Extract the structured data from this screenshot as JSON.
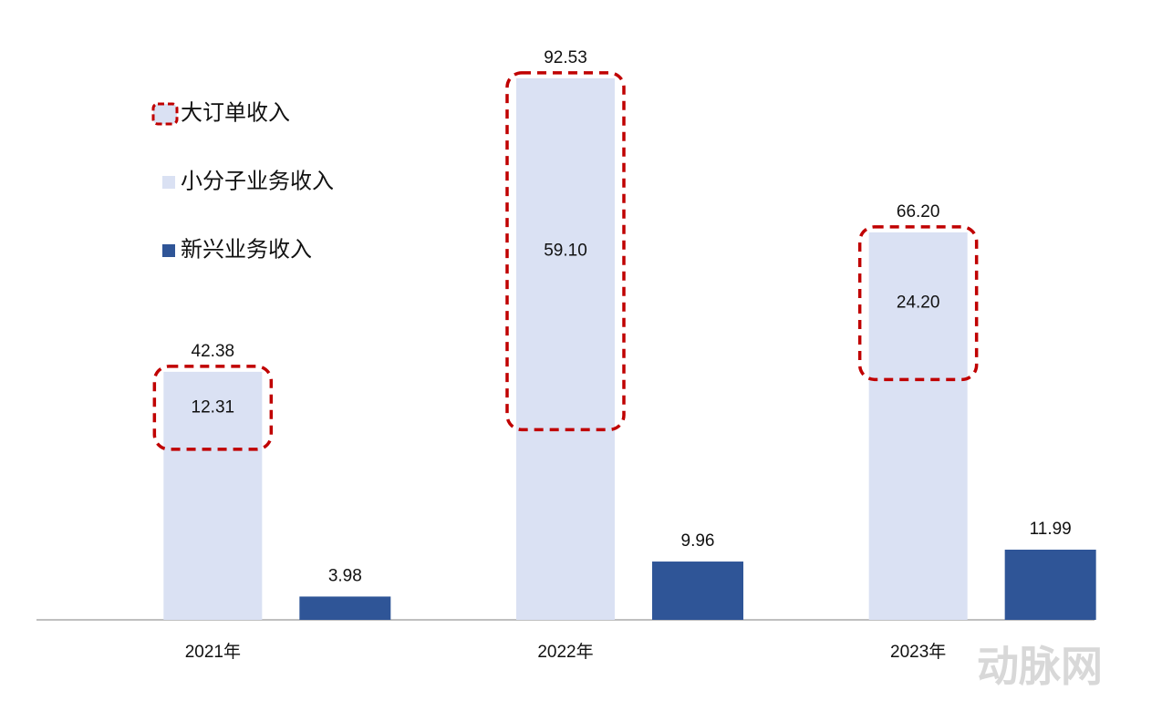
{
  "chart_data": {
    "type": "bar",
    "categories": [
      "2021年",
      "2022年",
      "2023年"
    ],
    "series": [
      {
        "name": "小分子业务收入",
        "color": "#dae1f3",
        "values": [
          42.38,
          92.53,
          66.2
        ],
        "value_labels": [
          "42.38",
          "92.53",
          "66.20"
        ]
      },
      {
        "name": "新兴业务收入",
        "color": "#2f5597",
        "values": [
          3.98,
          9.96,
          11.99
        ]
      }
    ],
    "highlight": {
      "name": "大订单收入",
      "color": "#c00000",
      "values": [
        12.31,
        59.1,
        24.2
      ],
      "value_labels": [
        "12.31",
        "59.10",
        "24.20"
      ]
    },
    "ylim": [
      0,
      95
    ],
    "legend": "top-left",
    "watermark": "动脉网"
  }
}
